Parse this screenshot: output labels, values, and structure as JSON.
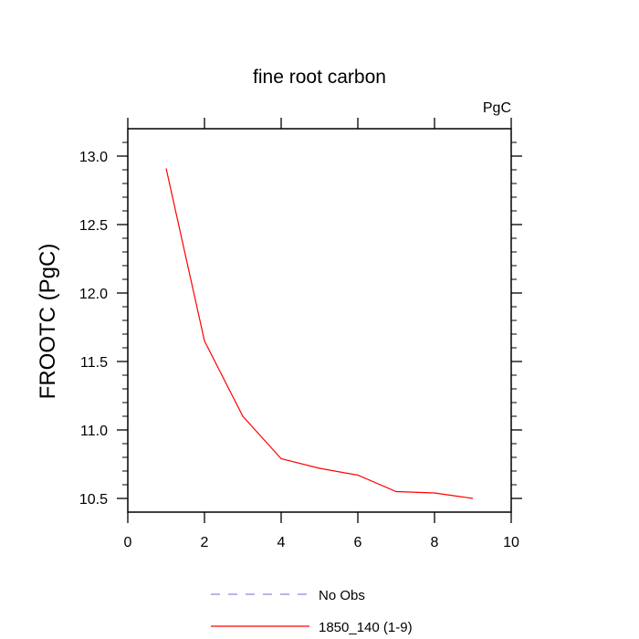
{
  "chart_data": {
    "type": "line",
    "title": "fine root carbon",
    "units_label": "PgC",
    "xlabel": "",
    "ylabel": "FROOTC  (PgC)",
    "xlim": [
      0,
      10
    ],
    "ylim": [
      10.4,
      13.2
    ],
    "xticks": [
      0,
      2,
      4,
      6,
      8,
      10
    ],
    "xtick_labels": [
      "0",
      "2",
      "4",
      "6",
      "8",
      "10"
    ],
    "yticks": [
      10.5,
      11.0,
      11.5,
      12.0,
      12.5,
      13.0
    ],
    "ytick_labels": [
      "10.5",
      "11.0",
      "11.5",
      "12.0",
      "12.5",
      "13.0"
    ],
    "grid": false,
    "legend_position": "bottom-center",
    "series": [
      {
        "name": "No Obs",
        "color": "#8a8ae0",
        "dash": "dashed",
        "x": [],
        "y": []
      },
      {
        "name": "1850_140 (1-9)",
        "color": "#ff0000",
        "dash": "solid",
        "x": [
          1,
          2,
          3,
          4,
          5,
          6,
          7,
          8,
          9
        ],
        "y": [
          12.91,
          11.65,
          11.1,
          10.79,
          10.72,
          10.67,
          10.55,
          10.54,
          10.5
        ]
      }
    ]
  }
}
